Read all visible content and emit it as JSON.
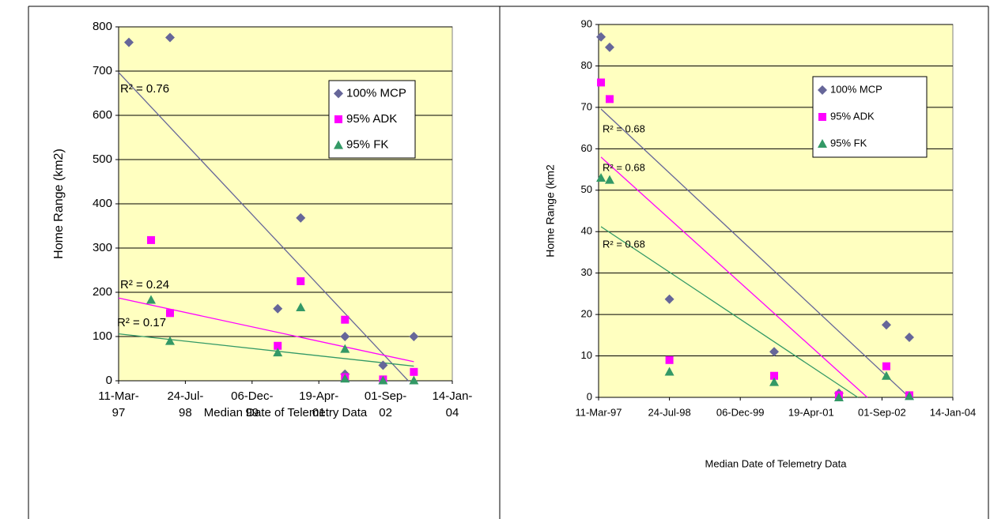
{
  "chart_data": [
    {
      "type": "scatter",
      "y_label": "Home Range (km2)",
      "x_label": "Median Date of Telemetry Data",
      "xlim": [
        "1997-03-11",
        "2004-01-14"
      ],
      "xticks": [
        {
          "value": "1997-03-11",
          "label": "11-Mar-97"
        },
        {
          "value": "1998-07-24",
          "label": "24-Jul-98"
        },
        {
          "value": "1999-12-06",
          "label": "06-Dec-99"
        },
        {
          "value": "2001-04-19",
          "label": "19-Apr-01"
        },
        {
          "value": "2002-09-01",
          "label": "01-Sep-02"
        },
        {
          "value": "2004-01-14",
          "label": "14-Jan-04"
        }
      ],
      "ylim": [
        0,
        800
      ],
      "yticks": [
        0,
        100,
        200,
        300,
        400,
        500,
        600,
        700,
        800
      ],
      "grid": true,
      "legend": "upper right",
      "series": [
        {
          "name": "100% MCP",
          "color": "#666699",
          "marker": "diamond",
          "x": [
            "1997-05-27",
            "1998-03-31",
            "2000-06-15",
            "2000-12-04",
            "2001-11-01",
            "2001-11-01",
            "2002-08-13",
            "2003-04-01"
          ],
          "values": [
            765,
            776,
            163,
            368,
            100,
            15,
            35,
            100
          ],
          "trend": {
            "x": [
              "1997-03-11",
              "2003-02-18"
            ],
            "values": [
              697,
              0
            ],
            "label": "R² = 0.76"
          }
        },
        {
          "name": "95% ADK",
          "color": "#ff00ff",
          "marker": "square",
          "x": [
            "1997-11-09",
            "1998-03-31",
            "2000-06-15",
            "2000-12-04",
            "2001-11-01",
            "2001-11-01",
            "2002-08-13",
            "2003-04-01"
          ],
          "values": [
            318,
            153,
            79,
            225,
            138,
            8,
            3,
            20
          ],
          "trend": {
            "x": [
              "1997-03-11",
              "2003-04-01"
            ],
            "values": [
              187,
              43
            ],
            "label": "R² = 0.24"
          }
        },
        {
          "name": "95% FK",
          "color": "#339966",
          "marker": "triangle",
          "x": [
            "1997-11-09",
            "1998-03-31",
            "2000-06-15",
            "2000-12-04",
            "2001-11-01",
            "2001-11-01",
            "2002-08-13",
            "2003-04-01"
          ],
          "values": [
            183,
            90,
            64,
            166,
            72,
            5,
            1,
            1
          ],
          "trend": {
            "x": [
              "1997-03-11",
              "2003-04-01"
            ],
            "values": [
              106,
              33
            ],
            "label": "R² = 0.17"
          }
        }
      ]
    },
    {
      "type": "scatter",
      "y_label": "Home Range (km2",
      "x_label": "Median Date of Telemetry Data",
      "xlim": [
        "1997-03-11",
        "2004-01-14"
      ],
      "xticks": [
        {
          "value": "1997-03-11",
          "label": "11-Mar-97"
        },
        {
          "value": "1998-07-24",
          "label": "24-Jul-98"
        },
        {
          "value": "1999-12-06",
          "label": "06-Dec-99"
        },
        {
          "value": "2001-04-19",
          "label": "19-Apr-01"
        },
        {
          "value": "2002-09-01",
          "label": "01-Sep-02"
        },
        {
          "value": "2004-01-14",
          "label": "14-Jan-04"
        }
      ],
      "ylim": [
        0,
        90
      ],
      "yticks": [
        0,
        10,
        20,
        30,
        40,
        50,
        60,
        70,
        80,
        90
      ],
      "grid": true,
      "legend": "upper right",
      "series": [
        {
          "name": "100% MCP",
          "color": "#666699",
          "marker": "diamond",
          "x": [
            "1997-03-28",
            "1997-05-28",
            "1998-07-24",
            "2000-08-01",
            "2001-11-01",
            "2002-10-02",
            "2003-03-13"
          ],
          "values": [
            87,
            84.5,
            23.7,
            11,
            1,
            17.5,
            14.5
          ],
          "trend": {
            "x": [
              "1997-03-28",
              "2003-03-13"
            ],
            "values": [
              69.6,
              0
            ],
            "label": "R² = 0.68"
          }
        },
        {
          "name": "95% ADK",
          "color": "#ff00ff",
          "marker": "square",
          "x": [
            "1997-03-28",
            "1997-05-28",
            "1998-07-24",
            "2000-08-01",
            "2001-11-01",
            "2002-10-02",
            "2003-03-13"
          ],
          "values": [
            76,
            72,
            9,
            5.2,
            0.5,
            7.5,
            0.5
          ],
          "trend": {
            "x": [
              "1997-03-28",
              "2002-05-20"
            ],
            "values": [
              58,
              0
            ],
            "label": "R² = 0.68"
          }
        },
        {
          "name": "95% FK",
          "color": "#339966",
          "marker": "triangle",
          "x": [
            "1997-03-28",
            "1997-05-28",
            "1998-07-24",
            "2000-08-01",
            "2001-11-01",
            "2002-10-02",
            "2003-03-13"
          ],
          "values": [
            53,
            52.5,
            6.2,
            3.7,
            0,
            5.2,
            0.3
          ],
          "trend": {
            "x": [
              "1997-03-28",
              "2002-03-14"
            ],
            "values": [
              41.2,
              0
            ],
            "label": "R² = 0.68"
          }
        }
      ]
    }
  ]
}
